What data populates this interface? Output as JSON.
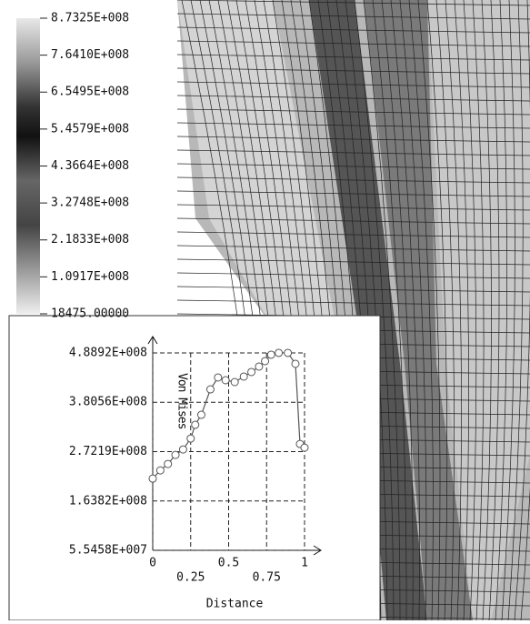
{
  "colorbar": {
    "ticks": [
      {
        "value": 873250000,
        "label": "8.7325E+008"
      },
      {
        "value": 764100000,
        "label": "7.6410E+008"
      },
      {
        "value": 654950000,
        "label": "6.5495E+008"
      },
      {
        "value": 545790000,
        "label": "5.4579E+008"
      },
      {
        "value": 436640000,
        "label": "4.3664E+008"
      },
      {
        "value": 327480000,
        "label": "3.2748E+008"
      },
      {
        "value": 218330000,
        "label": "2.1833E+008"
      },
      {
        "value": 109170000,
        "label": "1.0917E+008"
      },
      {
        "value": 18475,
        "label": "18475.00000"
      }
    ]
  },
  "chart_data": {
    "type": "line",
    "x_label": "Distance",
    "y_label": "Von Mises",
    "color": "#555555",
    "x": [
      0,
      0.05,
      0.1,
      0.15,
      0.2,
      0.25,
      0.28,
      0.32,
      0.38,
      0.43,
      0.48,
      0.54,
      0.6,
      0.65,
      0.7,
      0.74,
      0.78,
      0.83,
      0.89,
      0.94,
      0.97,
      1
    ],
    "values": [
      213000000,
      231000000,
      245000000,
      265000000,
      277000000,
      301000000,
      331000000,
      353000000,
      409000000,
      435000000,
      429000000,
      425000000,
      437000000,
      447000000,
      459000000,
      471000000,
      485000000,
      489000000,
      489000000,
      465000000,
      289000000,
      281000000
    ],
    "xlim": [
      0,
      1
    ],
    "xticks": [
      0,
      0.25,
      0.5,
      0.75,
      1
    ],
    "ylim": [
      55458000,
      488920000
    ],
    "yticks": [
      {
        "value": 55458000,
        "label": "5.5458E+007"
      },
      {
        "value": 163820000,
        "label": "1.6382E+008"
      },
      {
        "value": 272190000,
        "label": "2.7219E+008"
      },
      {
        "value": 380560000,
        "label": "3.8056E+008"
      },
      {
        "value": 488920000,
        "label": "4.8892E+008"
      }
    ],
    "grid": true
  }
}
